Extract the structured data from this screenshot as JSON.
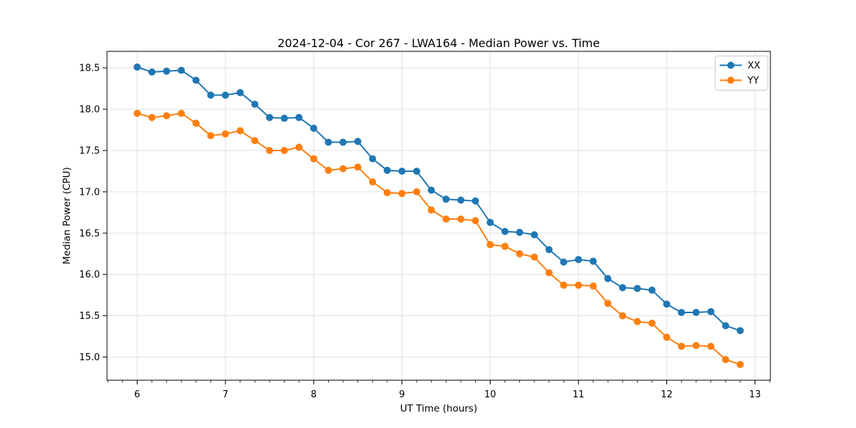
{
  "chart_data": {
    "type": "line",
    "title": "2024-12-04 - Cor 267 - LWA164 - Median Power vs. Time",
    "xlabel": "UT Time (hours)",
    "ylabel": "Median Power (CPU)",
    "xlim": [
      5.658,
      13.175
    ],
    "ylim": [
      14.72,
      18.7
    ],
    "xticks": [
      6,
      7,
      8,
      9,
      10,
      11,
      12,
      13
    ],
    "xtick_labels": [
      "6",
      "7",
      "8",
      "9",
      "10",
      "11",
      "12",
      "13"
    ],
    "yticks": [
      15.0,
      15.5,
      16.0,
      16.5,
      17.0,
      17.5,
      18.0,
      18.5
    ],
    "ytick_labels": [
      "15.0",
      "15.5",
      "16.0",
      "16.5",
      "17.0",
      "17.5",
      "18.0",
      "18.5"
    ],
    "x_minor_tick_step": 0.16667,
    "grid": true,
    "grid_color": "#e0e0e0",
    "legend_position": "top-right",
    "marker": "circle",
    "x": [
      6.0,
      6.167,
      6.333,
      6.5,
      6.667,
      6.833,
      7.0,
      7.167,
      7.333,
      7.5,
      7.667,
      7.833,
      8.0,
      8.167,
      8.333,
      8.5,
      8.667,
      8.833,
      9.0,
      9.167,
      9.333,
      9.5,
      9.667,
      9.833,
      10.0,
      10.167,
      10.333,
      10.5,
      10.667,
      10.833,
      11.0,
      11.167,
      11.333,
      11.5,
      11.667,
      11.833,
      12.0,
      12.167,
      12.333,
      12.5,
      12.667,
      12.833
    ],
    "series": [
      {
        "name": "XX",
        "color": "#1f77b4",
        "values": [
          18.51,
          18.45,
          18.46,
          18.47,
          18.35,
          18.17,
          18.17,
          18.2,
          18.06,
          17.9,
          17.89,
          17.9,
          17.77,
          17.6,
          17.6,
          17.61,
          17.4,
          17.26,
          17.25,
          17.25,
          17.02,
          16.91,
          16.9,
          16.89,
          16.63,
          16.52,
          16.51,
          16.48,
          16.3,
          16.15,
          16.18,
          16.16,
          15.95,
          15.84,
          15.83,
          15.81,
          15.64,
          15.54,
          15.54,
          15.55,
          15.38,
          15.32
        ]
      },
      {
        "name": "YY",
        "color": "#ff7f0e",
        "values": [
          17.95,
          17.9,
          17.92,
          17.95,
          17.83,
          17.68,
          17.7,
          17.74,
          17.62,
          17.5,
          17.5,
          17.54,
          17.4,
          17.26,
          17.28,
          17.3,
          17.12,
          16.99,
          16.98,
          17.0,
          16.78,
          16.67,
          16.67,
          16.65,
          16.36,
          16.34,
          16.25,
          16.21,
          16.02,
          15.87,
          15.87,
          15.86,
          15.65,
          15.5,
          15.43,
          15.41,
          15.24,
          15.13,
          15.14,
          15.13,
          14.97,
          14.91
        ]
      }
    ]
  }
}
